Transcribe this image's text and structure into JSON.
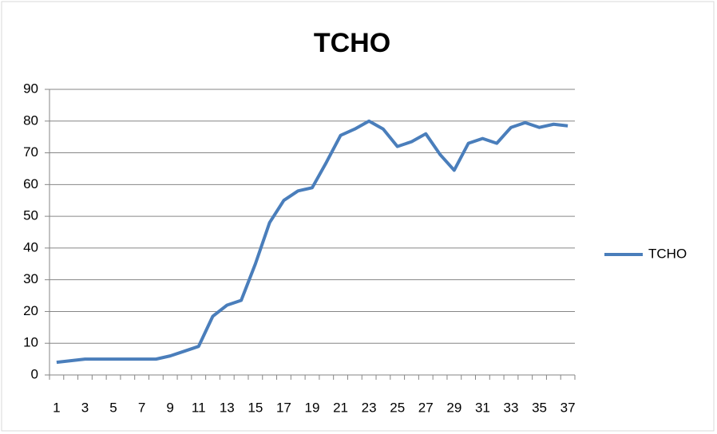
{
  "chart_data": {
    "type": "line",
    "title": "TCHO",
    "categories": [
      1,
      null,
      3,
      null,
      5,
      null,
      7,
      null,
      9,
      null,
      11,
      null,
      13,
      null,
      15,
      null,
      17,
      null,
      19,
      null,
      21,
      null,
      23,
      null,
      25,
      null,
      27,
      null,
      29,
      null,
      31,
      null,
      33,
      null,
      35,
      null,
      37
    ],
    "series": [
      {
        "name": "TCHO",
        "color": "#4a7ebb",
        "values": [
          4,
          4.5,
          5,
          5,
          5,
          5,
          5,
          5,
          6,
          7.5,
          9,
          18.5,
          22,
          23.5,
          35,
          48,
          55,
          58,
          59,
          67,
          75.5,
          77.5,
          80,
          77.5,
          72,
          73.5,
          76,
          69.5,
          64.5,
          73,
          74.5,
          73,
          78,
          79.5,
          78,
          79,
          78.5
        ]
      }
    ],
    "ylim": [
      0,
      90
    ],
    "yticks": [
      0,
      10,
      20,
      30,
      40,
      50,
      60,
      70,
      80,
      90
    ],
    "grid": true,
    "legend": "right"
  }
}
